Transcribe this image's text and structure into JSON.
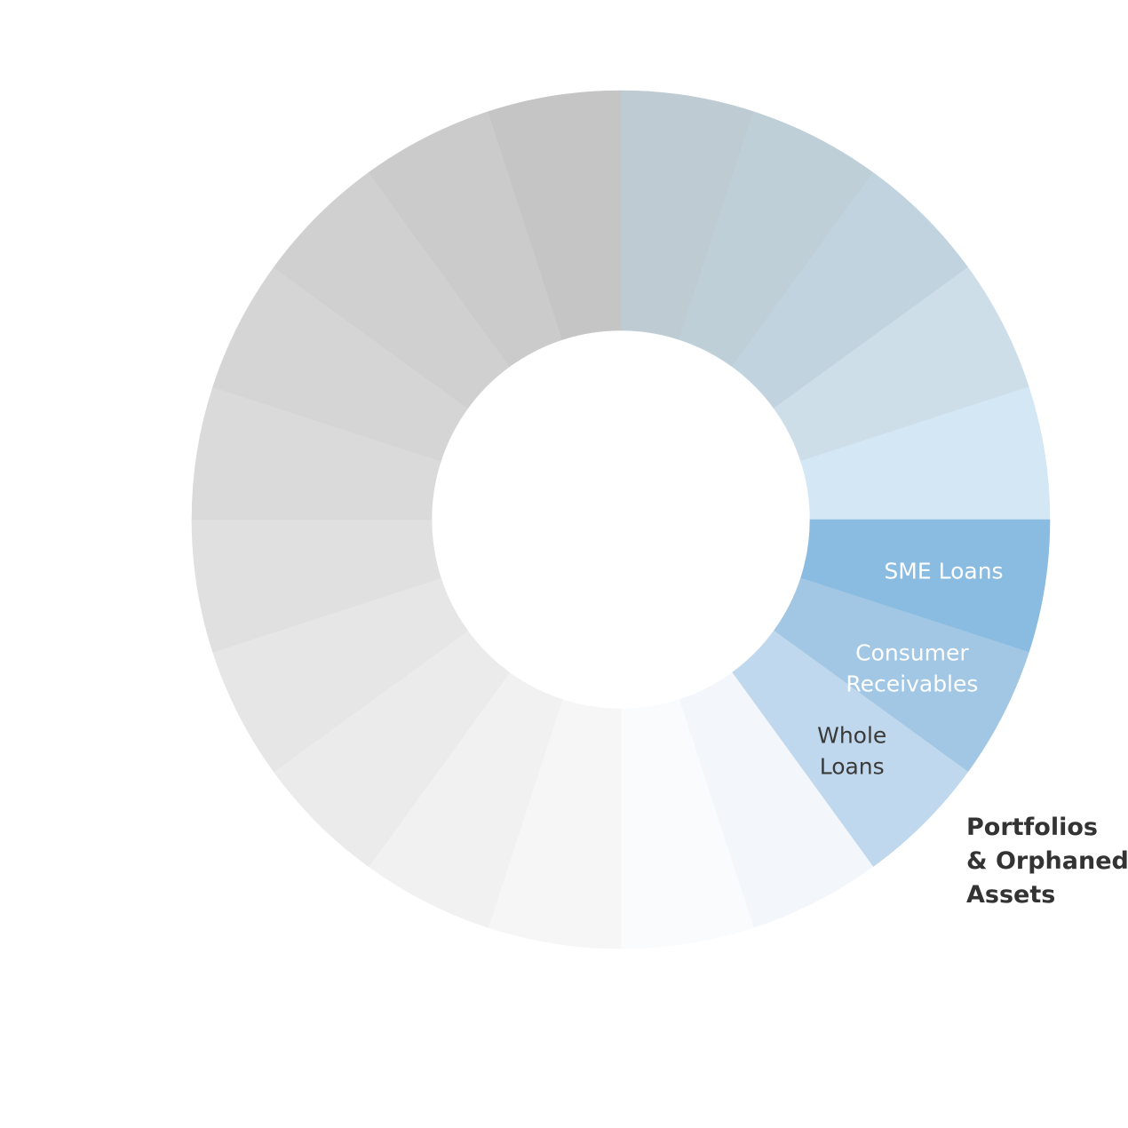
{
  "chart_data": {
    "type": "pie",
    "donut": true,
    "title": "",
    "segment_count": 20,
    "values": [
      1,
      1,
      1,
      1,
      1,
      1,
      1,
      1,
      1,
      1,
      1,
      1,
      1,
      1,
      1,
      1,
      1,
      1,
      1,
      1
    ],
    "colors": [
      "#bfcbd3",
      "#bfcfd8",
      "#c0d3df",
      "#cddee9",
      "#d4e7f5",
      "#8abbe0",
      "#a1c7e4",
      "#c0d8ed",
      "#f3f7fb",
      "#fafbfd",
      "#f6f6f6",
      "#f1f1f1",
      "#ebebeb",
      "#e6e6e6",
      "#e0e0e0",
      "#dadada",
      "#d5d5d5",
      "#d0d0d0",
      "#cbcbcb",
      "#c5c5c5"
    ],
    "segment_labels": [
      {
        "segment": 5,
        "lines": [
          "SME Loans"
        ],
        "style": "light"
      },
      {
        "segment": 6,
        "lines": [
          "Consumer",
          "Receivables"
        ],
        "style": "light"
      },
      {
        "segment": 7,
        "lines": [
          "Whole",
          "Loans"
        ],
        "style": "dark"
      }
    ],
    "callout": {
      "lines": [
        "Portfolios",
        "& Orphaned",
        "Assets"
      ]
    }
  }
}
